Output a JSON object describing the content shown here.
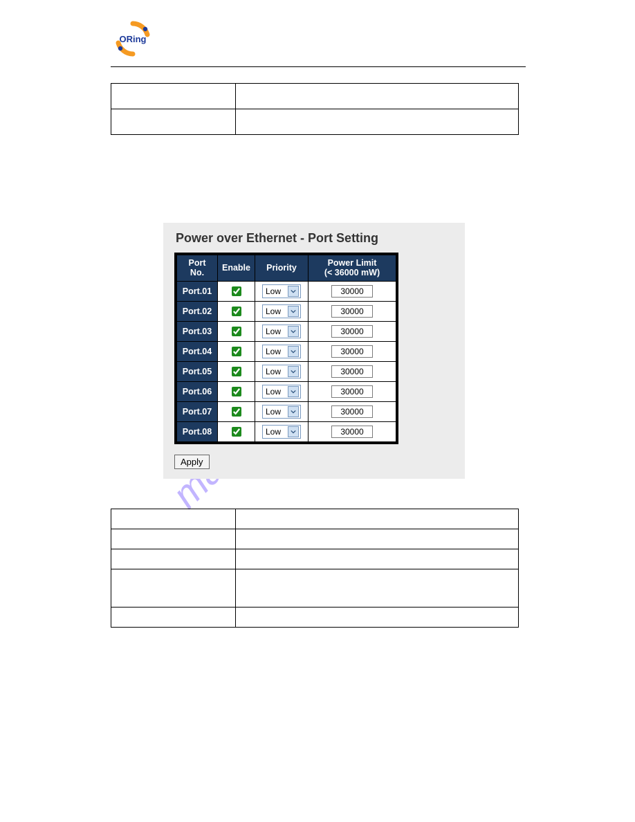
{
  "header": {
    "brand": "ORing",
    "logo_colors": {
      "outer_top": "#f59a22",
      "outer_bottom": "#f59a22",
      "dots": "#1d3a9a",
      "text": "#1d3a9a"
    }
  },
  "watermark": {
    "text": "manualslive.com",
    "color": "#7a5cff",
    "opacity": 0.45
  },
  "poe": {
    "title": "Power over Ethernet - Port Setting",
    "columns": {
      "port_no": "Port No.",
      "enable": "Enable",
      "priority": "Priority",
      "power_limit_line1": "Power Limit",
      "power_limit_line2": "(< 36000 mW)"
    },
    "priority_option": "Low",
    "ports": [
      {
        "name": "Port.01",
        "enabled": true,
        "priority": "Low",
        "limit": "30000"
      },
      {
        "name": "Port.02",
        "enabled": true,
        "priority": "Low",
        "limit": "30000"
      },
      {
        "name": "Port.03",
        "enabled": true,
        "priority": "Low",
        "limit": "30000"
      },
      {
        "name": "Port.04",
        "enabled": true,
        "priority": "Low",
        "limit": "30000"
      },
      {
        "name": "Port.05",
        "enabled": true,
        "priority": "Low",
        "limit": "30000"
      },
      {
        "name": "Port.06",
        "enabled": true,
        "priority": "Low",
        "limit": "30000"
      },
      {
        "name": "Port.07",
        "enabled": true,
        "priority": "Low",
        "limit": "30000"
      },
      {
        "name": "Port.08",
        "enabled": true,
        "priority": "Low",
        "limit": "30000"
      }
    ],
    "apply_label": "Apply",
    "styling": {
      "header_bg": "#1d3a5f",
      "header_fg": "#ffffff",
      "panel_bg": "#ececec",
      "border_color": "#000000",
      "checkbox_accent": "#1d8a1d",
      "select_border": "#7a9ac0",
      "select_button_bg": "#cfe0f2"
    }
  }
}
